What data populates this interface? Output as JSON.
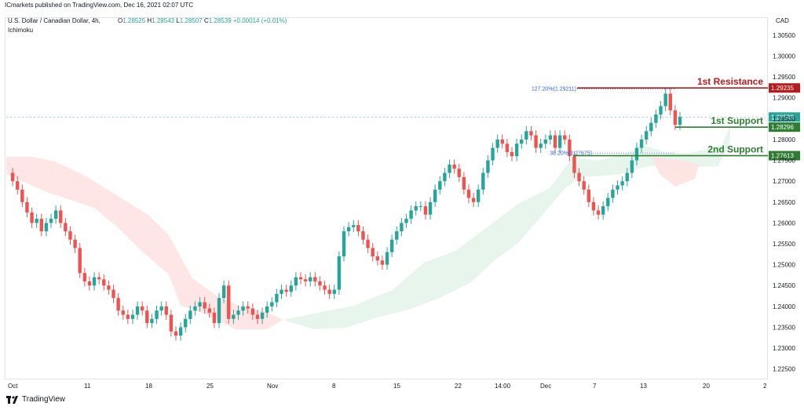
{
  "header": {
    "published_by": "ICmarkets published on TradingView.com, Dec 16, 2021 02:07 UTC",
    "symbol": "U.S. Dollar / Canadian Dollar, 4h,",
    "indicator": "Ichimoku",
    "ohlc": {
      "open_label": "O",
      "open": "1.28525",
      "high_label": "H",
      "high": "1.28543",
      "low_label": "L",
      "low": "1.28507",
      "close_label": "C",
      "close": "1.28539",
      "change": "+0.00014 (+0.01%)"
    },
    "currency": "CAD"
  },
  "footer": {
    "brand": "TradingView"
  },
  "colors": {
    "up": "#26a69a",
    "down": "#ef5350",
    "resistance": "#b71c1c",
    "support": "#2e7d32",
    "kumo_bear": "#fde2e1",
    "kumo_bull": "#e6f4ea",
    "price_tag": "#26a69a",
    "fib": "#2962ff"
  },
  "chart_data": {
    "type": "candlestick",
    "ylim": [
      1.2225,
      1.3093
    ],
    "y_ticks": [
      "1.30500",
      "1.30000",
      "1.29500",
      "1.29000",
      "1.28500",
      "1.28000",
      "1.27500",
      "1.27000",
      "1.26500",
      "1.26000",
      "1.25500",
      "1.25000",
      "1.24500",
      "1.24000",
      "1.23500",
      "1.23000",
      "1.22500"
    ],
    "x_ticks": [
      "Oct",
      "11",
      "18",
      "25",
      "Nov",
      "8",
      "15",
      "22",
      "14:00",
      "Dec",
      "7",
      "13",
      "20",
      "2"
    ],
    "last_price": "1.28539",
    "levels": [
      {
        "label": "1st Resistance",
        "value": 1.29235,
        "tag": "1.29235",
        "kind": "resistance"
      },
      {
        "label": "1st Support",
        "value": 1.28296,
        "tag": "1.28296",
        "kind": "support"
      },
      {
        "label": "2nd Support",
        "value": 1.27613,
        "tag": "1.27613",
        "kind": "support"
      }
    ],
    "fib_labels": [
      {
        "text": "127.20%(1.29211)",
        "value": 1.29211
      },
      {
        "text": "38.20%(1.27675)",
        "value": 1.27675
      }
    ],
    "close_path": [
      1.272,
      1.27,
      1.268,
      1.265,
      1.2625,
      1.26,
      1.261,
      1.258,
      1.26,
      1.261,
      1.263,
      1.26,
      1.258,
      1.256,
      1.254,
      1.248,
      1.246,
      1.245,
      1.247,
      1.2465,
      1.245,
      1.244,
      1.242,
      1.239,
      1.238,
      1.237,
      1.238,
      1.24,
      1.239,
      1.236,
      1.237,
      1.239,
      1.24,
      1.238,
      1.234,
      1.233,
      1.235,
      1.237,
      1.239,
      1.24,
      1.241,
      1.2395,
      1.2385,
      1.236,
      1.242,
      1.245,
      1.237,
      1.238,
      1.239,
      1.24,
      1.2395,
      1.238,
      1.237,
      1.2385,
      1.24,
      1.241,
      1.243,
      1.244,
      1.2435,
      1.245,
      1.247,
      1.2465,
      1.246,
      1.247,
      1.246,
      1.245,
      1.244,
      1.243,
      1.244,
      1.252,
      1.258,
      1.259,
      1.2595,
      1.258,
      1.256,
      1.254,
      1.252,
      1.251,
      1.25,
      1.253,
      1.256,
      1.258,
      1.26,
      1.261,
      1.263,
      1.264,
      1.264,
      1.262,
      1.265,
      1.268,
      1.27,
      1.272,
      1.274,
      1.273,
      1.271,
      1.268,
      1.266,
      1.265,
      1.268,
      1.272,
      1.275,
      1.278,
      1.28,
      1.279,
      1.277,
      1.276,
      1.279,
      1.28,
      1.282,
      1.281,
      1.278,
      1.279,
      1.28,
      1.281,
      1.278,
      1.281,
      1.28,
      1.276,
      1.272,
      1.27,
      1.268,
      1.265,
      1.263,
      1.262,
      1.264,
      1.266,
      1.268,
      1.269,
      1.27,
      1.272,
      1.275,
      1.278,
      1.28,
      1.282,
      1.284,
      1.286,
      1.288,
      1.291,
      1.287,
      1.2835,
      1.2854
    ]
  }
}
